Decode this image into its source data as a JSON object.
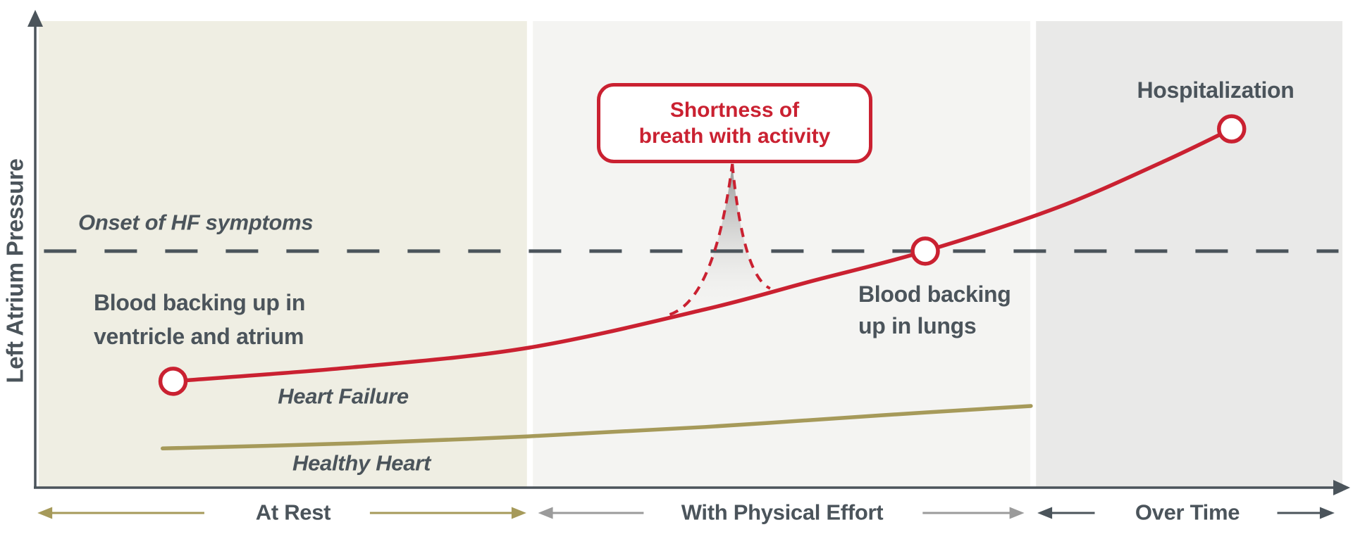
{
  "colors": {
    "slate": "#4b545b",
    "red": "#ca2131",
    "olive": "#a69a5a",
    "arrow_gray": "#9b9b9b",
    "bg_at_rest": "#efeee3",
    "bg_effort": "#f4f4f2",
    "bg_over_time": "#e9e9e8",
    "spike_gray": "#8d8d8d"
  },
  "labels": {
    "y_axis": "Left Atrium Pressure",
    "onset_threshold": "Onset of HF symptoms",
    "blood_ventricle": [
      "Blood backing up in",
      "ventricle and atrium"
    ],
    "heart_failure": "Heart Failure",
    "healthy_heart": "Healthy Heart",
    "blood_lungs": [
      "Blood backing",
      "up in lungs"
    ],
    "hospitalization": "Hospitalization",
    "callout": [
      "Shortness of",
      "breath with activity"
    ]
  },
  "chart_data": {
    "type": "line",
    "title": "",
    "ylabel": "Left Atrium Pressure",
    "xlabel": "",
    "x_range": [
      0,
      100
    ],
    "y_range": [
      0,
      100
    ],
    "grid": false,
    "legend_position": "inline-labels",
    "threshold": {
      "label": "Onset of HF symptoms",
      "y": 50.7,
      "style": "dashed"
    },
    "series": [
      {
        "name": "Heart Failure",
        "color_key": "red",
        "points": [
          [
            10.3,
            22.8
          ],
          [
            24.1,
            25.8
          ],
          [
            37.6,
            30.0
          ],
          [
            51.1,
            38.2
          ],
          [
            59.2,
            44.2
          ],
          [
            68.0,
            50.7
          ],
          [
            78.1,
            60.0
          ],
          [
            86.2,
            69.8
          ],
          [
            91.5,
            76.9
          ]
        ],
        "markers": [
          {
            "x": 10.3,
            "y": 22.8,
            "label": "Blood backing up in ventricle and atrium"
          },
          {
            "x": 68.0,
            "y": 50.7,
            "label": "Blood backing up in lungs"
          },
          {
            "x": 91.5,
            "y": 76.9,
            "label": "Hospitalization"
          }
        ]
      },
      {
        "name": "Healthy Heart",
        "color_key": "olive",
        "points": [
          [
            9.5,
            8.4
          ],
          [
            24.1,
            9.5
          ],
          [
            37.6,
            11.0
          ],
          [
            51.1,
            13.0
          ],
          [
            64.6,
            15.5
          ],
          [
            76.1,
            17.5
          ]
        ],
        "markers": []
      }
    ],
    "spike": {
      "label": "Shortness of breath with activity",
      "base_left": [
        48.4,
        37.1
      ],
      "peak": [
        53.2,
        69.4
      ],
      "base_right": [
        56.1,
        42.7
      ]
    },
    "sections": [
      {
        "label": "At Rest",
        "x0": 0,
        "x1": 37.45,
        "bg_key": "bg_at_rest",
        "arrow_key": "olive",
        "arrows": [
          {
            "from": 12.7,
            "to": -0.1,
            "dir": "left"
          },
          {
            "from": 25.4,
            "to": 37.4,
            "dir": "right"
          }
        ]
      },
      {
        "label": "With Physical Effort",
        "x0": 37.9,
        "x1": 76.05,
        "bg_key": "bg_effort",
        "arrow_key": "arrow_gray",
        "arrows": [
          {
            "from": 46.4,
            "to": 38.3,
            "dir": "left"
          },
          {
            "from": 67.8,
            "to": 75.6,
            "dir": "right"
          }
        ]
      },
      {
        "label": "Over Time",
        "x0": 76.5,
        "x1": 100,
        "bg_key": "bg_over_time",
        "arrow_key": "slate",
        "arrows": [
          {
            "from": 81.0,
            "to": 76.6,
            "dir": "left"
          },
          {
            "from": 95.0,
            "to": 99.4,
            "dir": "right"
          }
        ]
      }
    ]
  }
}
